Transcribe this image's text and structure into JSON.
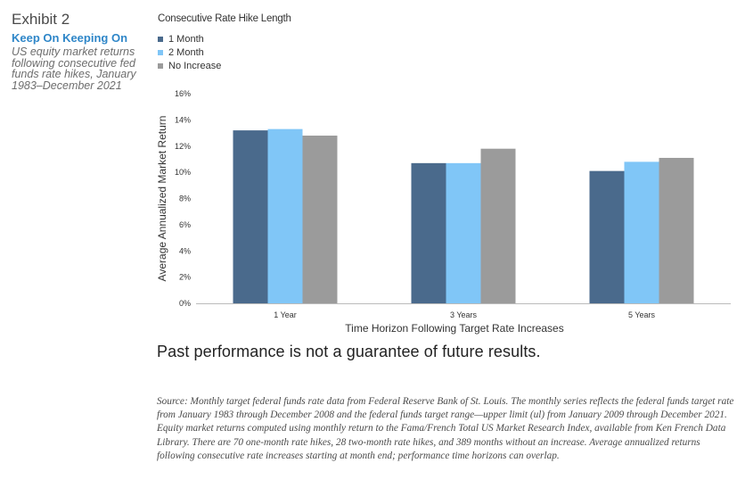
{
  "exhibit": {
    "number": "Exhibit 2",
    "title": "Keep On Keeping On",
    "subtitle": "US equity market returns following consecutive fed funds rate hikes, January 1983–December 2021"
  },
  "legend": {
    "title": "Consecutive Rate Hike Length",
    "items": [
      {
        "label": "1 Month",
        "color": "#4a6a8c"
      },
      {
        "label": "2 Month",
        "color": "#80c6f7"
      },
      {
        "label": "No Increase",
        "color": "#9b9b9b"
      }
    ]
  },
  "chart_data": {
    "type": "bar",
    "categories": [
      "1 Year",
      "3 Years",
      "5 Years"
    ],
    "series": [
      {
        "name": "1 Month",
        "color": "#4a6a8c",
        "values": [
          13.2,
          10.7,
          10.1
        ]
      },
      {
        "name": "2 Month",
        "color": "#80c6f7",
        "values": [
          13.3,
          10.7,
          10.8
        ]
      },
      {
        "name": "No Increase",
        "color": "#9b9b9b",
        "values": [
          12.8,
          11.8,
          11.1
        ]
      }
    ],
    "ylim": [
      0,
      16
    ],
    "yticks": [
      "0%",
      "2%",
      "4%",
      "6%",
      "8%",
      "10%",
      "12%",
      "14%",
      "16%"
    ],
    "ylabel": "Average Annualized Market Return",
    "xlabel": "Time Horizon Following Target Rate Increases",
    "grid": false,
    "legend_position": "top-left"
  },
  "disclaimer": "Past performance is not a guarantee of future results.",
  "source": "Source: Monthly target federal funds rate data from Federal Reserve Bank of St. Louis. The monthly series reflects the federal funds target rate from January 1983 through December 2008 and the federal funds target range—upper limit (ul) from January 2009 through December 2021. Equity market returns computed using monthly return to the Fama/French Total US Market Research Index, available from Ken French Data Library. There are 70 one-month rate hikes, 28 two-month rate hikes, and 389 months without an increase. Average annualized returns following consecutive rate increases starting at month end; performance time horizons can overlap."
}
